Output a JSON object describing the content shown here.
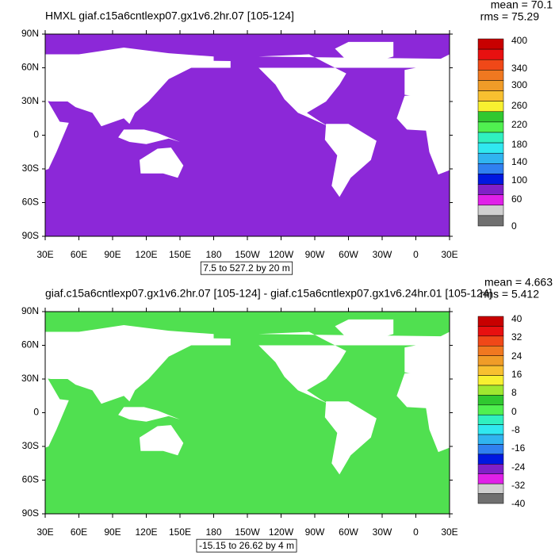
{
  "panels": [
    {
      "title": "HMXL giaf.c15a6cntlexp07.gx1v6.2hr.07 [105-124]",
      "mean": "mean = 70.1",
      "rms": "rms = 75.29",
      "lat_labels": [
        "90N",
        "60N",
        "30N",
        "0",
        "30S",
        "60S",
        "90S"
      ],
      "lon_labels": [
        "30E",
        "60E",
        "90E",
        "120E",
        "150E",
        "180",
        "150W",
        "120W",
        "90W",
        "60W",
        "30W",
        "0",
        "30E"
      ],
      "range_note": "7.5 to 527.2 by 20 m",
      "ocean_color": "#8c28d8",
      "colorbar": {
        "labels": [
          400,
          340,
          300,
          260,
          220,
          180,
          140,
          100,
          60,
          0
        ],
        "colors": [
          "#c80000",
          "#e81010",
          "#f04818",
          "#f07820",
          "#f09c28",
          "#f8c030",
          "#f8f030",
          "#30c830",
          "#50f050",
          "#30f0c0",
          "#30e8f0",
          "#30b4f0",
          "#3080f0",
          "#0018e0",
          "#8020c8",
          "#e020e8",
          "#d0d0d0",
          "#707070"
        ]
      }
    },
    {
      "title": "giaf.c15a6cntlexp07.gx1v6.2hr.07 [105-124] - giaf.c15a6cntlexp07.gx1v6.24hr.01 [105-124]",
      "mean": "mean = 4.663",
      "rms": "rms = 5.412",
      "lat_labels": [
        "90N",
        "60N",
        "30N",
        "0",
        "30S",
        "60S",
        "90S"
      ],
      "lon_labels": [
        "30E",
        "60E",
        "90E",
        "120E",
        "150E",
        "180",
        "150W",
        "120W",
        "90W",
        "60W",
        "30W",
        "0",
        "30E"
      ],
      "range_note": "-15.15 to 26.62 by 4 m",
      "ocean_color": "#50e050",
      "colorbar": {
        "labels": [
          40,
          32,
          24,
          16,
          8,
          0,
          -8,
          -16,
          -24,
          -32,
          -40
        ],
        "colors": [
          "#c80000",
          "#e81010",
          "#f04818",
          "#f07820",
          "#f09c28",
          "#f8c030",
          "#f8f030",
          "#a0e830",
          "#30c830",
          "#50f050",
          "#30f0c0",
          "#30e8f0",
          "#30b4f0",
          "#3080f0",
          "#0018e0",
          "#8020c8",
          "#e020e8",
          "#d0d0d0",
          "#707070"
        ]
      }
    }
  ]
}
